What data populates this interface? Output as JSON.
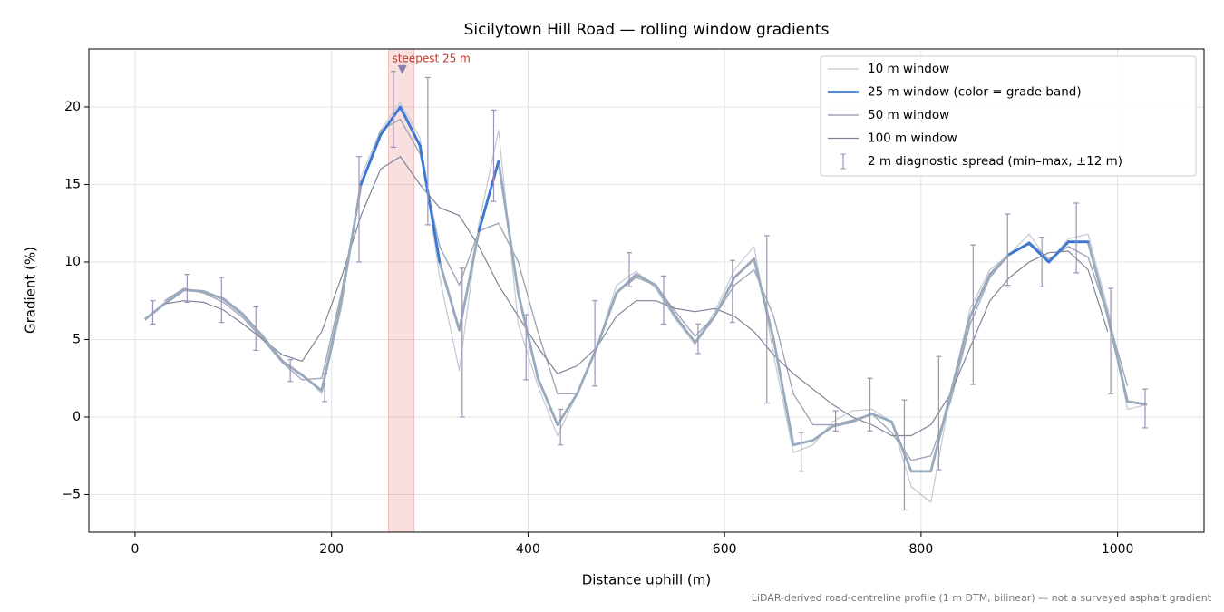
{
  "chart_data": {
    "type": "line",
    "title": "Sicilytown Hill Road — rolling window gradients",
    "x_label": "Distance uphill (m)",
    "y_label": "Gradient (%)",
    "footnote": "LiDAR-derived road-centreline profile (1 m DTM, bilinear) — not a surveyed asphalt gradient",
    "xlim": [
      -47,
      1088
    ],
    "ylim": [
      -7.43,
      23.74
    ],
    "xticks": [
      0,
      200,
      400,
      600,
      800,
      1000
    ],
    "yticks": [
      {
        "value": -5,
        "label": "−5"
      },
      0,
      5,
      10,
      15,
      20
    ],
    "grid": true,
    "legend": "upper right",
    "x": [
      10,
      30,
      50,
      70,
      90,
      110,
      130,
      150,
      170,
      190,
      210,
      230,
      250,
      270,
      290,
      310,
      330,
      350,
      370,
      390,
      410,
      430,
      450,
      470,
      490,
      510,
      530,
      550,
      570,
      590,
      610,
      630,
      650,
      670,
      690,
      710,
      730,
      750,
      770,
      790,
      810,
      830,
      850,
      870,
      890,
      910,
      930,
      950,
      970,
      990,
      1010,
      1030
    ],
    "series": [
      {
        "name": "10 m window",
        "color": "#c4c8d2",
        "width": 1.2,
        "values": [
          6.2,
          7.4,
          8.3,
          8.0,
          7.7,
          6.7,
          5.1,
          3.5,
          2.8,
          1.5,
          7.0,
          15.5,
          18.5,
          20.3,
          18.0,
          9.0,
          3.0,
          12.5,
          18.5,
          6.0,
          2.0,
          -1.2,
          1.5,
          4.5,
          8.5,
          9.4,
          8.3,
          6.3,
          4.7,
          6.8,
          9.5,
          11.0,
          4.0,
          -2.3,
          -1.8,
          -0.3,
          0.4,
          0.5,
          -0.3,
          -4.5,
          -5.5,
          1.5,
          7.0,
          9.5,
          10.5,
          11.8,
          10.0,
          11.5,
          11.8,
          7.0,
          0.5,
          0.8
        ]
      },
      {
        "name": "25 m window (color = grade band)",
        "color": "#3a78d4",
        "base_color": "#9aaabd",
        "highlight_min": 10,
        "width": 2.8,
        "values": [
          6.3,
          7.3,
          8.2,
          8.1,
          7.6,
          6.6,
          5.2,
          3.6,
          2.7,
          1.7,
          7.5,
          15.0,
          18.2,
          20.0,
          17.5,
          10.0,
          5.6,
          12.0,
          16.5,
          8.0,
          2.5,
          -0.5,
          1.5,
          4.5,
          8.0,
          9.2,
          8.5,
          6.5,
          4.8,
          6.5,
          9.0,
          10.2,
          5.0,
          -1.8,
          -1.5,
          -0.6,
          -0.3,
          0.2,
          -0.3,
          -3.5,
          -3.5,
          1.5,
          6.5,
          9.2,
          10.5,
          11.2,
          10.0,
          11.3,
          11.3,
          6.5,
          1.0,
          0.8
        ]
      },
      {
        "name": "50 m window",
        "color": "#a0a7b8",
        "width": 1.4,
        "values": [
          null,
          7.5,
          8.3,
          8.0,
          7.4,
          6.4,
          5.0,
          3.5,
          2.4,
          2.5,
          8.0,
          15.0,
          18.5,
          19.2,
          17.0,
          11.0,
          8.5,
          12.0,
          12.5,
          10.0,
          5.5,
          1.5,
          1.5,
          4.5,
          8.0,
          9.0,
          8.5,
          6.8,
          5.2,
          6.5,
          8.5,
          9.5,
          6.5,
          1.5,
          -0.5,
          -0.5,
          -0.2,
          0.2,
          -1.0,
          -2.8,
          -2.5,
          1.0,
          6.0,
          9.0,
          10.5,
          11.3,
          10.2,
          11.0,
          10.3,
          6.5,
          2.0,
          null
        ]
      },
      {
        "name": "100 m window",
        "color": "#7d8595",
        "width": 1.2,
        "values": [
          null,
          7.3,
          7.5,
          7.4,
          6.9,
          6.0,
          5.0,
          4.0,
          3.6,
          5.5,
          9.0,
          13.0,
          16.0,
          16.8,
          15.0,
          13.5,
          13.0,
          11.0,
          8.5,
          6.5,
          4.5,
          2.8,
          3.3,
          4.5,
          6.5,
          7.5,
          7.5,
          7.0,
          6.8,
          7.0,
          6.5,
          5.5,
          4.0,
          2.8,
          1.8,
          0.8,
          0.0,
          -0.5,
          -1.2,
          -1.2,
          -0.5,
          1.5,
          4.5,
          7.5,
          9.0,
          10.0,
          10.6,
          10.7,
          9.5,
          5.5,
          null,
          null
        ]
      }
    ],
    "errorbars": {
      "name": "2 m diagnostic spread (min–max, ±12 m)",
      "color": "#9d93b8",
      "x": [
        18,
        53,
        88,
        123,
        158,
        193,
        228,
        263,
        298,
        333,
        365,
        398,
        433,
        468,
        503,
        538,
        573,
        608,
        643,
        678,
        713,
        748,
        783,
        818,
        853,
        888,
        923,
        958,
        993,
        1028
      ],
      "low": [
        6.0,
        7.4,
        6.1,
        4.3,
        2.3,
        1.0,
        10.0,
        17.4,
        12.4,
        0.0,
        13.9,
        2.4,
        -1.8,
        2.0,
        8.4,
        6.0,
        4.1,
        6.1,
        0.9,
        -3.5,
        -0.9,
        -0.9,
        -6.0,
        -3.4,
        2.1,
        8.5,
        8.4,
        9.3,
        1.5,
        -0.7
      ],
      "high": [
        7.5,
        9.2,
        9.0,
        7.1,
        3.7,
        2.8,
        16.8,
        22.3,
        21.9,
        9.6,
        19.8,
        6.6,
        0.5,
        7.5,
        10.6,
        9.1,
        6.0,
        10.1,
        11.7,
        -1.0,
        0.4,
        2.5,
        1.1,
        3.9,
        11.1,
        13.1,
        11.6,
        13.8,
        8.3,
        1.8
      ]
    },
    "highlight": {
      "label": "steepest 25 m",
      "x_start": 258,
      "x_end": 284,
      "marker_x": 272,
      "marker_y": 22.4,
      "color": "#d9534f"
    }
  }
}
